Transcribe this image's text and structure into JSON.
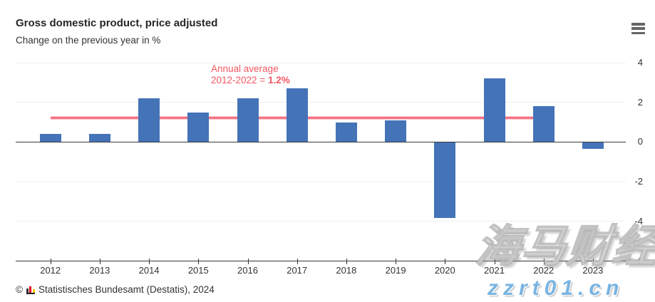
{
  "header": {
    "title": "Gross domestic product, price adjusted",
    "subtitle": "Change on the previous year in %"
  },
  "icons": {
    "menu": "hamburger-menu"
  },
  "chart_data": {
    "type": "bar",
    "title": "Gross domestic product, price adjusted",
    "subtitle": "Change on the previous year in %",
    "categories": [
      "2012",
      "2013",
      "2014",
      "2015",
      "2016",
      "2017",
      "2018",
      "2019",
      "2020",
      "2021",
      "2022",
      "2023"
    ],
    "values": [
      0.4,
      0.4,
      2.2,
      1.5,
      2.2,
      2.7,
      1.0,
      1.1,
      -3.8,
      3.2,
      1.8,
      -0.3
    ],
    "bar_color": "#4473b8",
    "xlabel": "",
    "ylabel": "",
    "yaxis": {
      "position": "right",
      "ticks": [
        4,
        2,
        0,
        -2,
        -4,
        -6
      ],
      "ylim": [
        -6,
        4
      ],
      "grid": true
    },
    "legend": "none",
    "annotation": {
      "line1": "Annual average",
      "line2_prefix": "2012-2022 = ",
      "line2_value": "1.2%",
      "value": 1.2,
      "span_categories": [
        "2012",
        "2022"
      ],
      "text_color": "#f25763",
      "line_color": "#f1556a"
    }
  },
  "footer": {
    "copyright": "©",
    "credit": "Statistisches Bundesamt (Destatis), 2024"
  },
  "watermark": {
    "cjk_text": "海马财经",
    "url_text": "zzrt01.cn",
    "url_color": "#79b4e2"
  }
}
